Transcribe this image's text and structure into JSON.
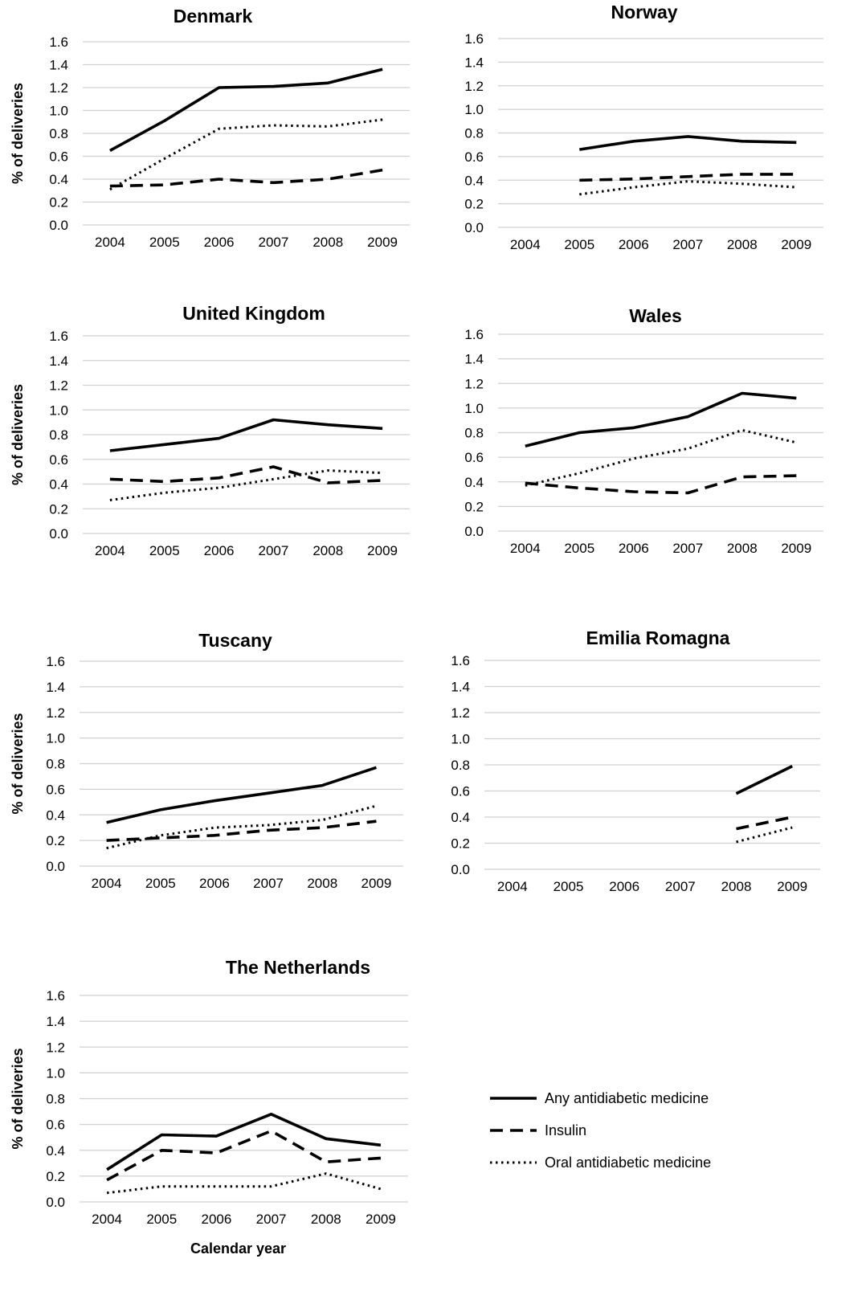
{
  "chart_data": [
    {
      "type": "line",
      "title": "Denmark",
      "ylabel": "% of deliveries",
      "xlabel": "",
      "x": [
        "2004",
        "2005",
        "2006",
        "2007",
        "2008",
        "2009"
      ],
      "yticks": [
        "0.0",
        "0.2",
        "0.4",
        "0.6",
        "0.8",
        "1.0",
        "1.2",
        "1.4",
        "1.6"
      ],
      "ylim": [
        0,
        1.6
      ],
      "series": [
        {
          "key": "any",
          "values": [
            0.65,
            0.91,
            1.2,
            1.21,
            1.24,
            1.36
          ]
        },
        {
          "key": "insulin",
          "values": [
            0.34,
            0.35,
            0.4,
            0.37,
            0.4,
            0.48
          ]
        },
        {
          "key": "oral",
          "values": [
            0.31,
            0.58,
            0.84,
            0.87,
            0.86,
            0.92
          ]
        }
      ]
    },
    {
      "type": "line",
      "title": "Norway",
      "ylabel": "",
      "xlabel": "",
      "x": [
        "2004",
        "2005",
        "2006",
        "2007",
        "2008",
        "2009"
      ],
      "yticks": [
        "0.0",
        "0.2",
        "0.4",
        "0.6",
        "0.8",
        "1.0",
        "1.2",
        "1.4",
        "1.6"
      ],
      "ylim": [
        0,
        1.6
      ],
      "series": [
        {
          "key": "any",
          "values": [
            null,
            0.66,
            0.73,
            0.77,
            0.73,
            0.72
          ]
        },
        {
          "key": "insulin",
          "values": [
            null,
            0.4,
            0.41,
            0.43,
            0.45,
            0.45
          ]
        },
        {
          "key": "oral",
          "values": [
            null,
            0.28,
            0.34,
            0.39,
            0.37,
            0.34
          ]
        }
      ]
    },
    {
      "type": "line",
      "title": "United Kingdom",
      "ylabel": "% of deliveries",
      "xlabel": "",
      "x": [
        "2004",
        "2005",
        "2006",
        "2007",
        "2008",
        "2009"
      ],
      "yticks": [
        "0.0",
        "0.2",
        "0.4",
        "0.6",
        "0.8",
        "1.0",
        "1.2",
        "1.4",
        "1.6"
      ],
      "ylim": [
        0,
        1.6
      ],
      "series": [
        {
          "key": "any",
          "values": [
            0.67,
            0.72,
            0.77,
            0.92,
            0.88,
            0.85
          ]
        },
        {
          "key": "insulin",
          "values": [
            0.44,
            0.42,
            0.45,
            0.54,
            0.41,
            0.43
          ]
        },
        {
          "key": "oral",
          "values": [
            0.27,
            0.33,
            0.37,
            0.44,
            0.51,
            0.49
          ]
        }
      ]
    },
    {
      "type": "line",
      "title": "Wales",
      "ylabel": "",
      "xlabel": "",
      "x": [
        "2004",
        "2005",
        "2006",
        "2007",
        "2008",
        "2009"
      ],
      "yticks": [
        "0.0",
        "0.2",
        "0.4",
        "0.6",
        "0.8",
        "1.0",
        "1.2",
        "1.4",
        "1.6"
      ],
      "ylim": [
        0,
        1.6
      ],
      "series": [
        {
          "key": "any",
          "values": [
            0.69,
            0.8,
            0.84,
            0.93,
            1.12,
            1.08
          ]
        },
        {
          "key": "insulin",
          "values": [
            0.39,
            0.35,
            0.32,
            0.31,
            0.44,
            0.45
          ]
        },
        {
          "key": "oral",
          "values": [
            0.37,
            0.47,
            0.59,
            0.67,
            0.82,
            0.72
          ]
        }
      ]
    },
    {
      "type": "line",
      "title": "Tuscany",
      "ylabel": "% of deliveries",
      "xlabel": "",
      "x": [
        "2004",
        "2005",
        "2006",
        "2007",
        "2008",
        "2009"
      ],
      "yticks": [
        "0.0",
        "0.2",
        "0.4",
        "0.6",
        "0.8",
        "1.0",
        "1.2",
        "1.4",
        "1.6"
      ],
      "ylim": [
        0,
        1.6
      ],
      "series": [
        {
          "key": "any",
          "values": [
            0.34,
            0.44,
            0.51,
            0.57,
            0.63,
            0.77
          ]
        },
        {
          "key": "insulin",
          "values": [
            0.2,
            0.22,
            0.24,
            0.28,
            0.3,
            0.35
          ]
        },
        {
          "key": "oral",
          "values": [
            0.14,
            0.24,
            0.3,
            0.32,
            0.36,
            0.47
          ]
        }
      ]
    },
    {
      "type": "line",
      "title": "Emilia Romagna",
      "ylabel": "",
      "xlabel": "",
      "x": [
        "2004",
        "2005",
        "2006",
        "2007",
        "2008",
        "2009"
      ],
      "yticks": [
        "0.0",
        "0.2",
        "0.4",
        "0.6",
        "0.8",
        "1.0",
        "1.2",
        "1.4",
        "1.6"
      ],
      "ylim": [
        0,
        1.6
      ],
      "series": [
        {
          "key": "any",
          "values": [
            null,
            null,
            null,
            null,
            0.58,
            0.79
          ]
        },
        {
          "key": "insulin",
          "values": [
            null,
            null,
            null,
            null,
            0.31,
            0.4
          ]
        },
        {
          "key": "oral",
          "values": [
            null,
            null,
            null,
            null,
            0.21,
            0.32
          ]
        }
      ]
    },
    {
      "type": "line",
      "title": "The Netherlands",
      "ylabel": "% of deliveries",
      "xlabel": "Calendar year",
      "x": [
        "2004",
        "2005",
        "2006",
        "2007",
        "2008",
        "2009"
      ],
      "yticks": [
        "0.0",
        "0.2",
        "0.4",
        "0.6",
        "0.8",
        "1.0",
        "1.2",
        "1.4",
        "1.6"
      ],
      "ylim": [
        0,
        1.6
      ],
      "series": [
        {
          "key": "any",
          "values": [
            0.25,
            0.52,
            0.51,
            0.68,
            0.49,
            0.44
          ]
        },
        {
          "key": "insulin",
          "values": [
            0.17,
            0.4,
            0.38,
            0.55,
            0.31,
            0.34
          ]
        },
        {
          "key": "oral",
          "values": [
            0.07,
            0.12,
            0.12,
            0.12,
            0.22,
            0.1
          ]
        }
      ]
    }
  ],
  "legend": {
    "items": [
      {
        "key": "any",
        "label": "Any antidiabetic medicine"
      },
      {
        "key": "insulin",
        "label": "Insulin"
      },
      {
        "key": "oral",
        "label": "Oral antidiabetic medicine"
      }
    ]
  }
}
